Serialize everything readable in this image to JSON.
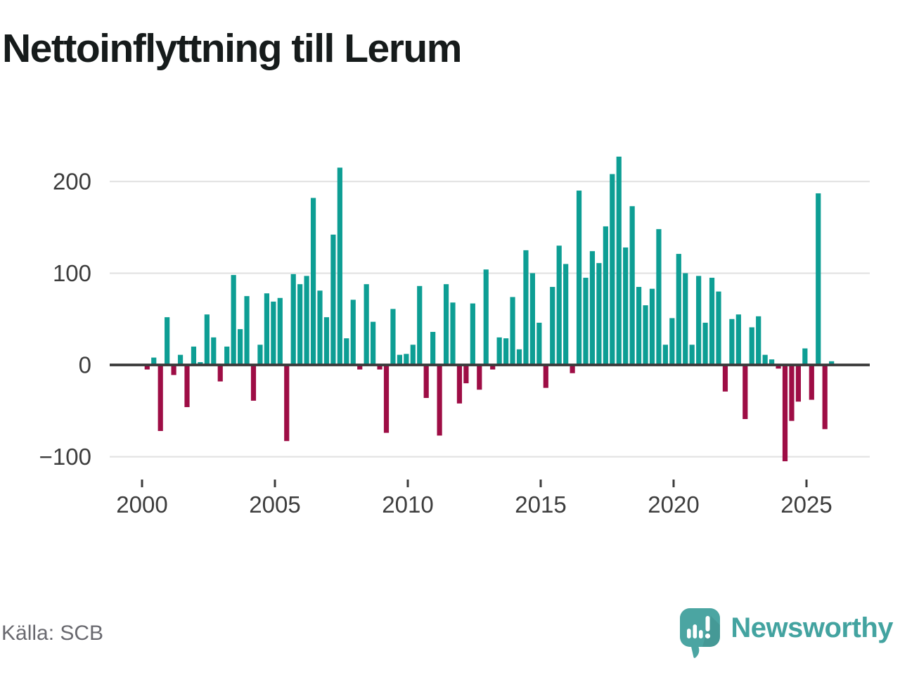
{
  "title": "Nettoinflyttning till Lerum",
  "source": "Källa: SCB",
  "branding": {
    "name": "Newsworthy",
    "logo_icon": "speech-bubble-bar-chart-exclamation"
  },
  "colors": {
    "title_text": "#161b1b",
    "positive_bar": "#0d9e94",
    "negative_bar": "#9e0d45",
    "gridline": "#e3e3e3",
    "zero_line": "#3b3b3b",
    "axis_text": "#3d3d3d",
    "tick_mark": "#3d3d3d",
    "source_text": "#69696f",
    "brand_teal": "#43a3a0",
    "background": "#ffffff"
  },
  "chart_data": {
    "type": "bar",
    "title": "Nettoinflyttning till Lerum",
    "frequency": "quarterly",
    "start_period": "2000 Q1",
    "end_period": "2025 Q4",
    "values": [
      -5,
      8,
      -72,
      52,
      -11,
      11,
      -46,
      20,
      3,
      55,
      30,
      -18,
      20,
      98,
      39,
      75,
      -39,
      22,
      78,
      69,
      73,
      -83,
      99,
      88,
      97,
      182,
      81,
      52,
      142,
      215,
      29,
      71,
      -5,
      88,
      47,
      -5,
      -74,
      61,
      11,
      12,
      22,
      86,
      -36,
      36,
      -77,
      88,
      68,
      -42,
      -20,
      67,
      -27,
      104,
      -5,
      30,
      29,
      74,
      17,
      125,
      100,
      46,
      -25,
      85,
      130,
      110,
      -9,
      190,
      95,
      124,
      111,
      151,
      208,
      227,
      128,
      173,
      85,
      65,
      83,
      148,
      22,
      51,
      121,
      100,
      22,
      97,
      46,
      95,
      80,
      -29,
      50,
      55,
      -59,
      41,
      53,
      11,
      6,
      -4,
      -105,
      -61,
      -40,
      18,
      -38,
      187,
      -70,
      4
    ],
    "x_tick_years": [
      2000,
      2005,
      2010,
      2015,
      2020,
      2025
    ],
    "x_tick_labels": [
      "2000",
      "2005",
      "2010",
      "2015",
      "2020",
      "2025"
    ],
    "y_tick_values": [
      200,
      100,
      0,
      -100
    ],
    "y_tick_labels": [
      "200",
      "100",
      "0",
      "−100"
    ],
    "ylim": [
      -130,
      245
    ],
    "xlabel": "",
    "ylabel": "",
    "grid": "horizontal",
    "legend": "none"
  }
}
